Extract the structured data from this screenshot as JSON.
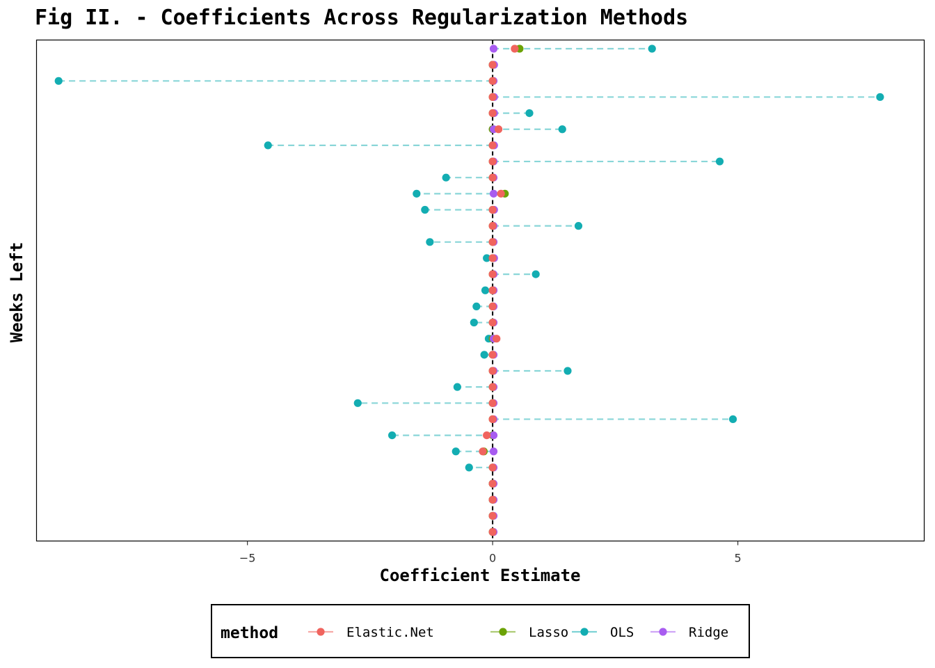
{
  "chart_data": {
    "type": "scatter",
    "title": "Fig II. - Coefficients Across Regularization Methods",
    "xlabel": "Coefficient Estimate",
    "ylabel": "Weeks Left",
    "xlim": [
      -9.3,
      8.8
    ],
    "x_ticks": [
      -5,
      0,
      5
    ],
    "x_tick_labels": [
      "−5",
      "0",
      "5"
    ],
    "y_ticks_shown": false,
    "grid": false,
    "zero_line": {
      "x": 0,
      "style": "dashed",
      "color": "#000000"
    },
    "segments": {
      "series": "OLS",
      "from_x": 0,
      "style": "dashed"
    },
    "legend": {
      "title": "method",
      "placement": "bottom"
    },
    "n_rows": 31,
    "series": [
      {
        "name": "OLS",
        "color": "#13ADB2",
        "values": [
          3.25,
          0.0,
          -8.85,
          7.9,
          0.75,
          1.42,
          -4.58,
          4.63,
          -0.95,
          -1.55,
          -1.38,
          1.75,
          -1.28,
          -0.12,
          0.88,
          -0.15,
          -0.33,
          -0.38,
          -0.08,
          -0.17,
          1.53,
          -0.72,
          -2.75,
          4.9,
          -2.05,
          -0.75,
          -0.48,
          0.0,
          0.0,
          0.0,
          0.0
        ]
      },
      {
        "name": "Lasso",
        "color": "#6BA205",
        "values": [
          0.55,
          0.0,
          0.0,
          0.0,
          0.0,
          0.0,
          0.0,
          0.0,
          0.0,
          0.25,
          0.0,
          0.0,
          0.0,
          0.0,
          0.0,
          0.0,
          0.0,
          0.0,
          0.0,
          0.0,
          0.0,
          0.0,
          0.0,
          0.0,
          0.0,
          -0.18,
          0.0,
          0.0,
          0.0,
          0.0,
          0.0
        ]
      },
      {
        "name": "Ridge",
        "color": "#A85CF0",
        "values": [
          0.02,
          0.03,
          0.02,
          0.03,
          0.03,
          0.02,
          0.03,
          0.02,
          0.02,
          0.02,
          0.03,
          0.02,
          0.02,
          0.03,
          0.02,
          0.02,
          0.02,
          0.02,
          0.02,
          0.02,
          0.02,
          0.02,
          0.02,
          0.02,
          0.02,
          0.02,
          0.02,
          0.02,
          0.02,
          0.02,
          0.02
        ]
      },
      {
        "name": "Elastic.Net",
        "color": "#F0645E",
        "values": [
          0.45,
          0.0,
          0.0,
          0.0,
          0.0,
          0.12,
          0.0,
          0.0,
          0.0,
          0.17,
          0.0,
          0.0,
          0.0,
          0.0,
          0.0,
          0.0,
          0.0,
          0.0,
          0.08,
          0.0,
          0.0,
          0.0,
          0.0,
          0.0,
          -0.12,
          -0.2,
          0.0,
          0.0,
          0.0,
          0.0,
          0.0
        ]
      }
    ],
    "legend_order": [
      "Elastic.Net",
      "Lasso",
      "OLS",
      "Ridge"
    ]
  }
}
